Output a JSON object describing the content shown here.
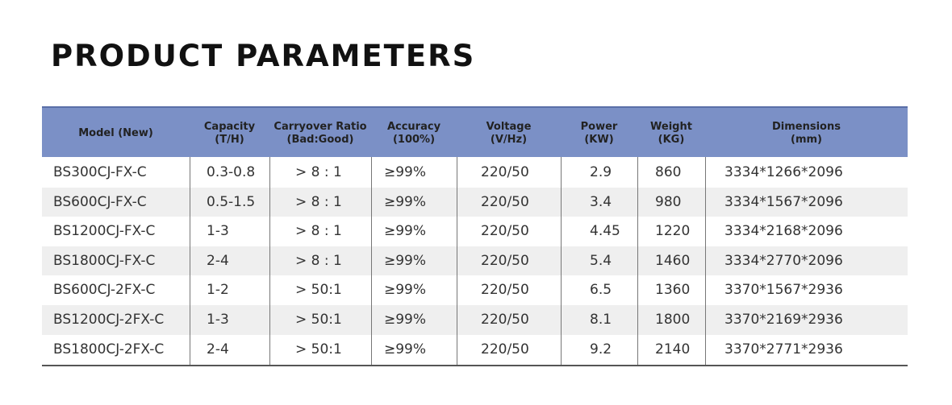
{
  "header": {
    "title": "PRODUCT PARAMETERS"
  },
  "table": {
    "headers": [
      [
        "Model (New)"
      ],
      [
        "Capacity",
        "(T/H)"
      ],
      [
        "Carryover Ratio",
        "(Bad:Good)"
      ],
      [
        "Accuracy",
        "(100%)"
      ],
      [
        "Voltage",
        "(V/Hz)"
      ],
      [
        "Power",
        "(KW)"
      ],
      [
        "Weight",
        "(KG)"
      ],
      [
        "Dimensions",
        "(mm)"
      ]
    ],
    "rows": [
      [
        "BS300CJ-FX-C",
        "0.3-0.8",
        "> 8 : 1",
        "≥99%",
        "220/50",
        "2.9",
        "860",
        "3334*1266*2096"
      ],
      [
        "BS600CJ-FX-C",
        "0.5-1.5",
        "> 8 : 1",
        "≥99%",
        "220/50",
        "3.4",
        "980",
        "3334*1567*2096"
      ],
      [
        "BS1200CJ-FX-C",
        "1-3",
        "> 8 : 1",
        "≥99%",
        "220/50",
        "4.45",
        "1220",
        "3334*2168*2096"
      ],
      [
        "BS1800CJ-FX-C",
        "2-4",
        "> 8 : 1",
        "≥99%",
        "220/50",
        "5.4",
        "1460",
        "3334*2770*2096"
      ],
      [
        "BS600CJ-2FX-C",
        "1-2",
        "> 50:1",
        "≥99%",
        "220/50",
        "6.5",
        "1360",
        "3370*1567*2936"
      ],
      [
        "BS1200CJ-2FX-C",
        "1-3",
        "> 50:1",
        "≥99%",
        "220/50",
        "8.1",
        "1800",
        "3370*2169*2936"
      ],
      [
        "BS1800CJ-2FX-C",
        "2-4",
        "> 50:1",
        "≥99%",
        "220/50",
        "9.2",
        "2140",
        "3370*2771*2936"
      ]
    ]
  }
}
